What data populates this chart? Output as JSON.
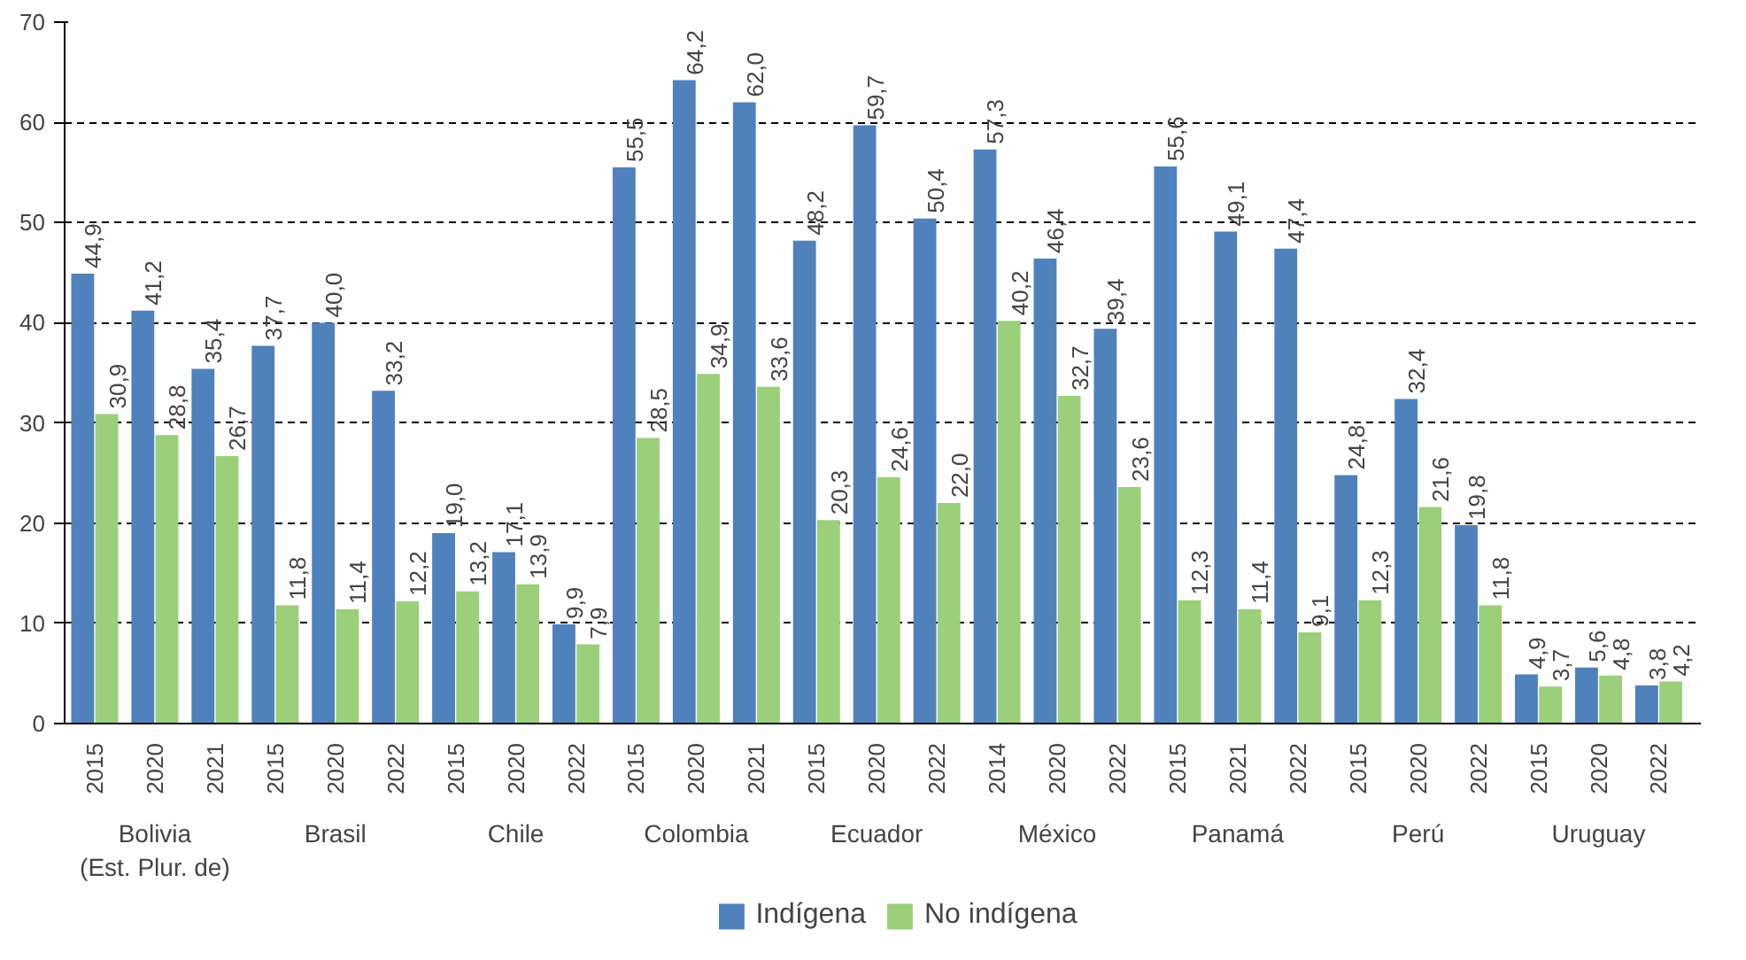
{
  "chart_data": {
    "type": "bar",
    "categories": [
      "2015",
      "2020",
      "2021",
      "2015",
      "2020",
      "2022",
      "2015",
      "2020",
      "2022",
      "2015",
      "2020",
      "2021",
      "2015",
      "2020",
      "2022",
      "2014",
      "2020",
      "2022",
      "2015",
      "2021",
      "2022",
      "2015",
      "2020",
      "2022",
      "2015",
      "2020",
      "2022"
    ],
    "series": [
      {
        "name": "Indígena",
        "color": "#4f81bd",
        "values": [
          44.9,
          41.2,
          35.4,
          37.7,
          40.0,
          33.2,
          19.0,
          17.1,
          9.9,
          55.5,
          64.2,
          62.0,
          48.2,
          59.7,
          50.4,
          57.3,
          46.4,
          39.4,
          55.6,
          49.1,
          47.4,
          24.8,
          32.4,
          19.8,
          4.9,
          5.6,
          3.8
        ],
        "value_labels": [
          "44,9",
          "41,2",
          "35,4",
          "37,7",
          "40,0",
          "33,2",
          "19,0",
          "17,1",
          "9,9",
          "55,5",
          "64,2",
          "62,0",
          "48,2",
          "59,7",
          "50,4",
          "57,3",
          "46,4",
          "39,4",
          "55,6",
          "49,1",
          "47,4",
          "24,8",
          "32,4",
          "19,8",
          "4,9",
          "5,6",
          "3,8"
        ]
      },
      {
        "name": "No indígena",
        "color": "#9bcf7a",
        "values": [
          30.9,
          28.8,
          26.7,
          11.8,
          11.4,
          12.2,
          13.2,
          13.9,
          7.9,
          28.5,
          34.9,
          33.6,
          20.3,
          24.6,
          22.0,
          40.2,
          32.7,
          23.6,
          12.3,
          11.4,
          9.1,
          12.3,
          21.6,
          11.8,
          3.7,
          4.8,
          4.2
        ],
        "value_labels": [
          "30,9",
          "28,8",
          "26,7",
          "11,8",
          "11,4",
          "12,2",
          "13,2",
          "13,9",
          "7,9",
          "28,5",
          "34,9",
          "33,6",
          "20,3",
          "24,6",
          "22,0",
          "40,2",
          "32,7",
          "23,6",
          "12,3",
          "11,4",
          "9,1",
          "12,3",
          "21,6",
          "11,8",
          "3,7",
          "4,8",
          "4,2"
        ]
      }
    ],
    "annotations": [
      "Bolivia\n(Est. Plur. de)",
      "Brasil",
      "Chile",
      "Colombia",
      "Ecuador",
      "México",
      "Panamá",
      "Perú",
      "Uruguay"
    ],
    "ylim": [
      0,
      70
    ],
    "yticks": [
      0,
      10,
      20,
      30,
      40,
      50,
      60,
      70
    ],
    "grid": "y",
    "legend": "bottom"
  }
}
